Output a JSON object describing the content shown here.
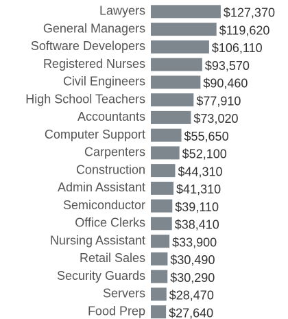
{
  "chart_data": {
    "type": "bar",
    "categories": [
      "Lawyers",
      "General Managers",
      "Software Developers",
      "Registered Nurses",
      "Civil Engineers",
      "High School Teachers",
      "Accountants",
      "Computer Support",
      "Carpenters",
      "Construction",
      "Admin Assistant",
      "Semiconductor",
      "Office Clerks",
      "Nursing Assistant",
      "Retail Sales",
      "Security Guards",
      "Servers",
      "Food Prep"
    ],
    "values": [
      127370,
      119620,
      106110,
      93570,
      90460,
      77910,
      73020,
      55650,
      52100,
      44310,
      41310,
      39110,
      38410,
      33900,
      30490,
      30290,
      28470,
      27640
    ],
    "value_labels": [
      "$127,370",
      "$119,620",
      "$106,110",
      "$93,570",
      "$90,460",
      "$77,910",
      "$73,020",
      "$55,650",
      "$52,100",
      "$44,310",
      "$41,310",
      "$39,110",
      "$38,410",
      "$33,900",
      "$30,490",
      "$30,290",
      "$28,470",
      "$27,640"
    ],
    "color": "#7e868e",
    "xlim": [
      0,
      250000
    ]
  }
}
